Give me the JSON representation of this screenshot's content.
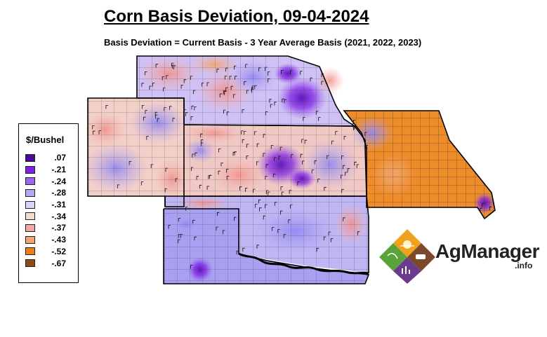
{
  "title": "Corn Basis Deviation, 09-04-2024",
  "subtitle": "Basis Deviation = Current Basis - 3 Year Average Basis (2021, 2022, 2023)",
  "legend": {
    "title": "$/Bushel",
    "items": [
      {
        "label": ".07",
        "color": "#4a0a9e"
      },
      {
        "label": "-.21",
        "color": "#7f1fe6"
      },
      {
        "label": "-.24",
        "color": "#9b63ee"
      },
      {
        "label": "-.28",
        "color": "#b4a6f4"
      },
      {
        "label": "-.31",
        "color": "#dcd2f7"
      },
      {
        "label": "-.34",
        "color": "#f4dcd0"
      },
      {
        "label": "-.37",
        "color": "#f2a8a0"
      },
      {
        "label": "-.43",
        "color": "#f3a46c"
      },
      {
        "label": "-.52",
        "color": "#f07f1a"
      },
      {
        "label": "-.67",
        "color": "#8f4a10"
      }
    ]
  },
  "logo": {
    "name": "AgManager",
    "suffix": ".info"
  }
}
